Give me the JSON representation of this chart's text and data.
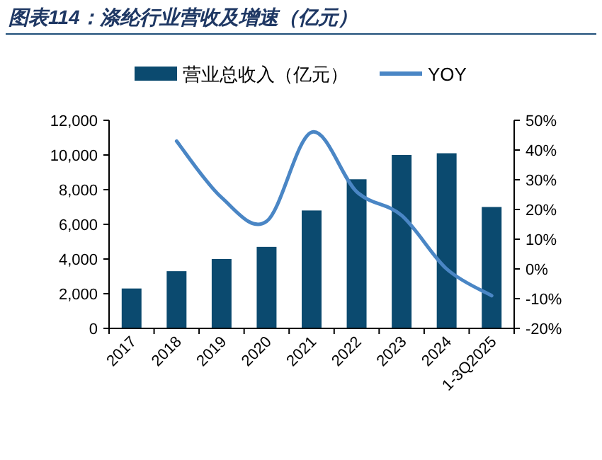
{
  "chart_data": {
    "type": "bar",
    "title": "图表114：涤纶行业营收及增速（亿元）",
    "categories": [
      "2017",
      "2018",
      "2019",
      "2020",
      "2021",
      "2022",
      "2023",
      "2024",
      "1-3Q2025"
    ],
    "series": [
      {
        "name": "营业总收入（亿元）",
        "color": "#0b4a6f",
        "values": [
          2300,
          3300,
          4000,
          4700,
          6800,
          8600,
          10000,
          10100,
          7000
        ]
      },
      {
        "name": "YOY",
        "type": "line",
        "axis": "y2",
        "color": "#4a86c5",
        "values": [
          null,
          43,
          24,
          16,
          46,
          26,
          18,
          0,
          -9
        ]
      }
    ],
    "ylim": [
      0,
      12000
    ],
    "yticks": [
      {
        "value": 0,
        "label": "0"
      },
      {
        "value": 2000,
        "label": "2,000"
      },
      {
        "value": 4000,
        "label": "4,000"
      },
      {
        "value": 6000,
        "label": "6,000"
      },
      {
        "value": 8000,
        "label": "8,000"
      },
      {
        "value": 10000,
        "label": "10,000"
      },
      {
        "value": 12000,
        "label": "12,000"
      }
    ],
    "y2lim": [
      -20,
      50
    ],
    "y2ticks": [
      {
        "value": -20,
        "label": "-20%"
      },
      {
        "value": -10,
        "label": "-10%"
      },
      {
        "value": 0,
        "label": "0%"
      },
      {
        "value": 10,
        "label": "10%"
      },
      {
        "value": 20,
        "label": "20%"
      },
      {
        "value": 30,
        "label": "30%"
      },
      {
        "value": 40,
        "label": "40%"
      },
      {
        "value": 50,
        "label": "50%"
      }
    ],
    "legend": "top",
    "grid": false
  }
}
